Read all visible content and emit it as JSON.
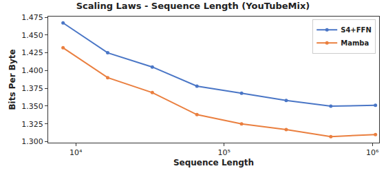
{
  "chart_data": {
    "type": "line",
    "title": "Scaling Laws - Sequence Length (YouTubeMix)",
    "x_label": "Sequence Length",
    "y_label": "Bits Per Byte",
    "x": [
      8192,
      16384,
      32768,
      65536,
      131072,
      262144,
      524288,
      1048576
    ],
    "series": [
      {
        "name": "S4+FFN",
        "color": "#4a76c6",
        "marker": "circle",
        "line_style": "solid",
        "values": [
          1.467,
          1.425,
          1.405,
          1.378,
          1.368,
          1.358,
          1.35,
          1.351
        ]
      },
      {
        "name": "Mamba",
        "color": "#ea7f3f",
        "marker": "circle",
        "line_style": "solid",
        "values": [
          1.432,
          1.39,
          1.369,
          1.338,
          1.325,
          1.317,
          1.307,
          1.31
        ]
      }
    ],
    "log": "x",
    "xlim": [
      6500,
      1110000
    ],
    "xticks": [
      {
        "value": 10000,
        "label": "10⁴"
      },
      {
        "value": 100000,
        "label": "10⁵"
      },
      {
        "value": 1000000,
        "label": "10⁶"
      }
    ],
    "ylim": [
      1.2985,
      1.476
    ],
    "yticks": [
      {
        "value": 1.3,
        "label": "1.300"
      },
      {
        "value": 1.325,
        "label": "1.325"
      },
      {
        "value": 1.35,
        "label": "1.350"
      },
      {
        "value": 1.375,
        "label": "1.375"
      },
      {
        "value": 1.4,
        "label": "1.400"
      },
      {
        "value": 1.425,
        "label": "1.425"
      },
      {
        "value": 1.45,
        "label": "1.450"
      },
      {
        "value": 1.475,
        "label": "1.475"
      }
    ],
    "grid": false,
    "legend": "upper right"
  }
}
